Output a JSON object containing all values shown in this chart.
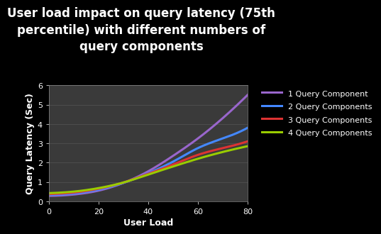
{
  "title": "User load impact on query latency (75th\npercentile) with different numbers of\nquery components",
  "xlabel": "User Load",
  "ylabel": "Query Latency (Sec)",
  "xlim": [
    0,
    80
  ],
  "ylim": [
    0,
    6
  ],
  "xticks": [
    0,
    20,
    40,
    60,
    80
  ],
  "yticks": [
    0,
    1,
    2,
    3,
    4,
    5,
    6
  ],
  "background_color": "#000000",
  "plot_bg_color": "#3a3a3a",
  "grid_color": "#666666",
  "text_color": "#ffffff",
  "series": [
    {
      "label": "1 Query Component",
      "color": "#9966cc",
      "x": [
        0,
        5,
        10,
        20,
        30,
        40,
        50,
        60,
        70,
        80
      ],
      "y": [
        0.28,
        0.3,
        0.35,
        0.55,
        0.95,
        1.55,
        2.35,
        3.25,
        4.3,
        5.5
      ]
    },
    {
      "label": "2 Query Components",
      "color": "#4488ff",
      "x": [
        0,
        5,
        10,
        20,
        30,
        40,
        50,
        60,
        70,
        80
      ],
      "y": [
        0.33,
        0.35,
        0.4,
        0.6,
        0.95,
        1.45,
        2.05,
        2.75,
        3.25,
        3.8
      ]
    },
    {
      "label": "3 Query Components",
      "color": "#dd3333",
      "x": [
        0,
        5,
        10,
        20,
        30,
        40,
        50,
        60,
        70,
        80
      ],
      "y": [
        0.37,
        0.4,
        0.45,
        0.65,
        0.97,
        1.42,
        1.9,
        2.4,
        2.75,
        3.1
      ]
    },
    {
      "label": "4 Query Components",
      "color": "#99cc00",
      "x": [
        0,
        5,
        10,
        20,
        30,
        40,
        50,
        60,
        70,
        80
      ],
      "y": [
        0.42,
        0.45,
        0.5,
        0.68,
        0.97,
        1.38,
        1.8,
        2.2,
        2.55,
        2.85
      ]
    }
  ],
  "title_fontsize": 12,
  "label_fontsize": 9,
  "tick_fontsize": 8,
  "legend_fontsize": 8,
  "linewidth": 2.2
}
